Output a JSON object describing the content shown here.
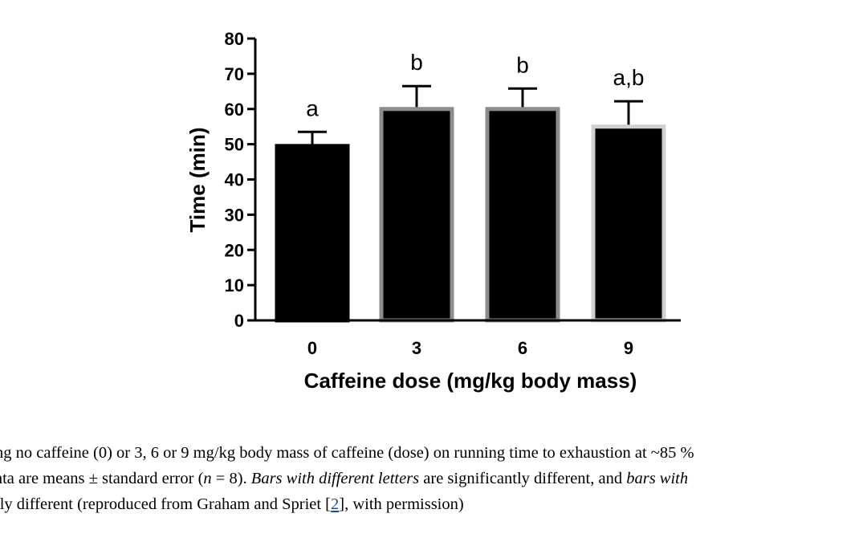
{
  "chart_data": {
    "type": "bar",
    "categories": [
      "0",
      "3",
      "6",
      "9"
    ],
    "values": [
      49.5,
      60,
      60,
      55
    ],
    "errors": [
      4,
      6.5,
      5.8,
      7.2
    ],
    "significance_labels": [
      "a",
      "b",
      "b",
      "a,b"
    ],
    "bar_outline_colors": [
      "#000000",
      "#8c8c8c",
      "#8c8c8c",
      "#d0d0d0"
    ],
    "ylabel": "Time (min)",
    "xlabel": "Caffeine dose (mg/kg body mass)",
    "ylim": [
      0,
      80
    ],
    "yticks": [
      0,
      10,
      20,
      30,
      40,
      50,
      60,
      70,
      80
    ],
    "grid": false,
    "legend": "none"
  },
  "caption": {
    "line1": "ng no caffeine (0) or 3, 6 or 9 mg/kg body mass of caffeine (dose) on running time to exhaustion at ~85 %",
    "line2_a": "ata are means ± standard error (",
    "line2_n": "n",
    "line2_b": " = 8). ",
    "line2_italic1": "Bars with different letters",
    "line2_c": " are significantly different, and ",
    "line2_italic2": "bars with",
    "line3_a": "tly different (reproduced from Graham and Spriet [",
    "line3_link": "2",
    "line3_b": "], with permission)"
  }
}
